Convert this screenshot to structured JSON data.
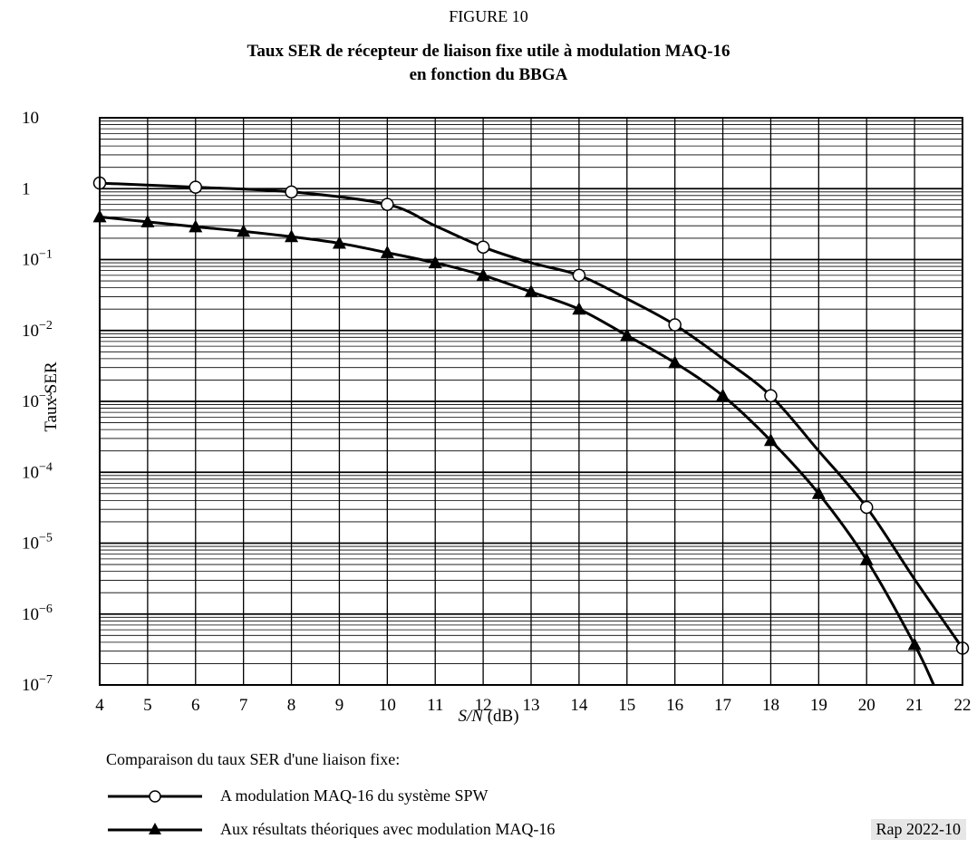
{
  "figure": {
    "label": "FIGURE 10",
    "title_line1": "Taux SER de récepteur de liaison fixe utile à modulation MAQ-16",
    "title_line2": "en fonction du BBGA",
    "reference": "Rap 2022-10"
  },
  "chart_data": {
    "type": "line",
    "title": "Taux SER de récepteur de liaison fixe utile à modulation MAQ-16 en fonction du BBGA",
    "xlabel": "S/N",
    "xlabel_unit": "(dB)",
    "ylabel": "Taux SER",
    "xlim": [
      4,
      22
    ],
    "ylim": [
      1e-07,
      10
    ],
    "yscale": "log",
    "grid": true,
    "x_ticks": [
      4,
      5,
      6,
      7,
      8,
      9,
      10,
      11,
      12,
      13,
      14,
      15,
      16,
      17,
      18,
      19,
      20,
      21,
      22
    ],
    "y_ticks": [
      {
        "value": 10,
        "base": "10",
        "exp": ""
      },
      {
        "value": 1,
        "base": "1",
        "exp": ""
      },
      {
        "value": 0.1,
        "base": "10",
        "exp": "−1"
      },
      {
        "value": 0.01,
        "base": "10",
        "exp": "−2"
      },
      {
        "value": 0.001,
        "base": "10",
        "exp": "−3"
      },
      {
        "value": 0.0001,
        "base": "10",
        "exp": "−4"
      },
      {
        "value": 1e-05,
        "base": "10",
        "exp": "−5"
      },
      {
        "value": 1e-06,
        "base": "10",
        "exp": "−6"
      },
      {
        "value": 1e-07,
        "base": "10",
        "exp": "−7"
      }
    ],
    "series": [
      {
        "name": "A modulation MAQ-16 du système SPW",
        "marker": "circle",
        "markers": [
          [
            4,
            1.2
          ],
          [
            6,
            1.05
          ],
          [
            8,
            0.9
          ],
          [
            10,
            0.6
          ],
          [
            12,
            0.15
          ],
          [
            14,
            0.06
          ],
          [
            16,
            0.012
          ],
          [
            18,
            0.0012
          ],
          [
            20,
            3.2e-05
          ],
          [
            22,
            3.3e-07
          ]
        ],
        "curve": [
          [
            4,
            1.2
          ],
          [
            6,
            1.05
          ],
          [
            8,
            0.9
          ],
          [
            10,
            0.6
          ],
          [
            11,
            0.3
          ],
          [
            12,
            0.15
          ],
          [
            13,
            0.09
          ],
          [
            14,
            0.06
          ],
          [
            15,
            0.028
          ],
          [
            16,
            0.012
          ],
          [
            17,
            0.004
          ],
          [
            18,
            0.0012
          ],
          [
            19,
            0.0002
          ],
          [
            20,
            3.2e-05
          ],
          [
            21,
            3.1e-06
          ],
          [
            22,
            3.3e-07
          ]
        ]
      },
      {
        "name": "Aux résultats théoriques avec modulation MAQ-16",
        "marker": "triangle",
        "markers": [
          [
            4,
            0.4
          ],
          [
            5,
            0.34
          ],
          [
            6,
            0.29
          ],
          [
            7,
            0.25
          ],
          [
            8,
            0.21
          ],
          [
            9,
            0.17
          ],
          [
            10,
            0.125
          ],
          [
            11,
            0.09
          ],
          [
            12,
            0.06
          ],
          [
            13,
            0.035
          ],
          [
            14,
            0.02
          ],
          [
            15,
            0.0085
          ],
          [
            16,
            0.0035
          ],
          [
            17,
            0.0012
          ],
          [
            18,
            0.00028
          ],
          [
            19,
            5e-05
          ],
          [
            20,
            5.8e-06
          ],
          [
            21,
            3.7e-07
          ]
        ],
        "curve": [
          [
            4,
            0.4
          ],
          [
            5,
            0.34
          ],
          [
            6,
            0.29
          ],
          [
            7,
            0.25
          ],
          [
            8,
            0.21
          ],
          [
            9,
            0.17
          ],
          [
            10,
            0.125
          ],
          [
            11,
            0.09
          ],
          [
            12,
            0.06
          ],
          [
            13,
            0.035
          ],
          [
            14,
            0.02
          ],
          [
            15,
            0.0085
          ],
          [
            16,
            0.0035
          ],
          [
            17,
            0.0012
          ],
          [
            18,
            0.00028
          ],
          [
            19,
            5e-05
          ],
          [
            20,
            5.8e-06
          ],
          [
            21,
            3.7e-07
          ],
          [
            21.4,
            1e-07
          ]
        ]
      }
    ]
  },
  "legend": {
    "intro": "Comparaison du taux SER d'une liaison fixe:",
    "items": [
      {
        "label": "A modulation MAQ-16 du système SPW",
        "marker": "circle"
      },
      {
        "label": "Aux résultats théoriques avec modulation MAQ-16",
        "marker": "triangle"
      }
    ]
  }
}
